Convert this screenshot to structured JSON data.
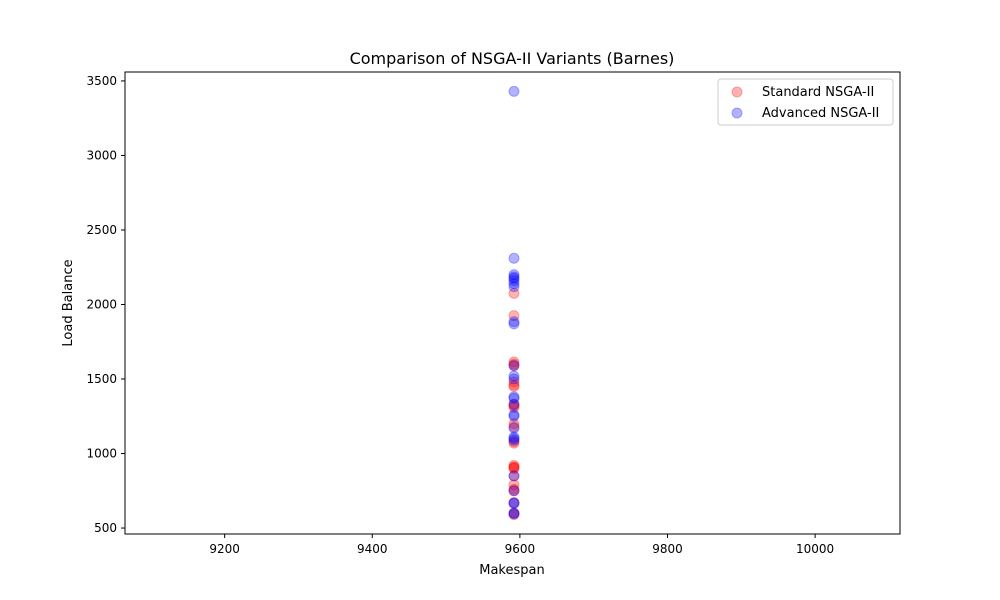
{
  "chart_data": {
    "type": "scatter",
    "title": "Comparison of NSGA-II Variants (Barnes)",
    "xlabel": "Makespan",
    "ylabel": "Load Balance",
    "xlim": [
      9065,
      10115
    ],
    "ylim": [
      460,
      3560
    ],
    "xticks": [
      "9200",
      "9400",
      "9600",
      "9800",
      "10000"
    ],
    "yticks": [
      "500",
      "1000",
      "1500",
      "2000",
      "2500",
      "3000",
      "3500"
    ],
    "grid": false,
    "legend_position": "top-right",
    "series": [
      {
        "name": "Standard NSGA-II",
        "color": "#ff0000",
        "opacity": 0.3,
        "x": [
          9592,
          9592,
          9592,
          9592,
          9592,
          9592,
          9592,
          9592,
          9592,
          9592,
          9592,
          9592,
          9592,
          9592,
          9592,
          9592,
          9592,
          9592,
          9592,
          9592,
          9592,
          9592,
          9592,
          9592,
          9592,
          9592
        ],
        "y": [
          2075,
          1925,
          1615,
          1600,
          1590,
          1480,
          1460,
          1450,
          1330,
          1320,
          1310,
          1200,
          1180,
          1080,
          1070,
          920,
          910,
          905,
          900,
          850,
          790,
          760,
          750,
          670,
          600,
          590
        ]
      },
      {
        "name": "Advanced NSGA-II",
        "color": "#0000ff",
        "opacity": 0.3,
        "x": [
          9592,
          9592,
          9592,
          9592,
          9592,
          9592,
          9592,
          9592,
          9592,
          9592,
          9592,
          9592,
          9592,
          9592,
          9592,
          9592,
          9592,
          9592,
          9592,
          9592,
          9592,
          9592,
          9592,
          9592,
          9592,
          9592,
          9592,
          9592
        ],
        "y": [
          3430,
          2310,
          2200,
          2185,
          2175,
          2160,
          2140,
          2120,
          1885,
          1870,
          1590,
          1520,
          1500,
          1380,
          1370,
          1330,
          1260,
          1250,
          1170,
          1110,
          1100,
          1090,
          850,
          750,
          670,
          665,
          600,
          595
        ]
      }
    ]
  }
}
